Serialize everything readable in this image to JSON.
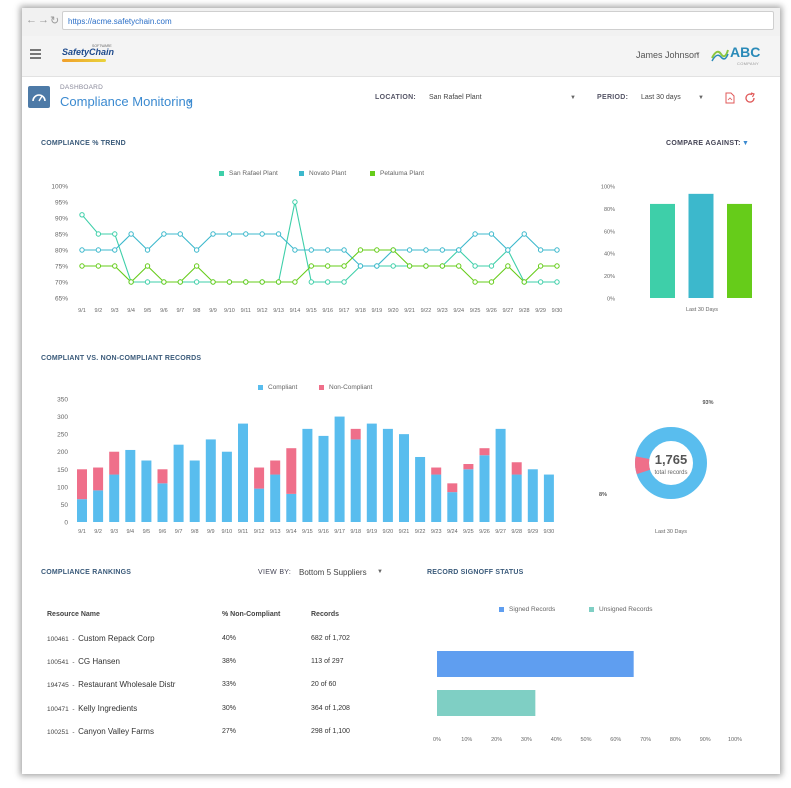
{
  "browser": {
    "url": "https://acme.safetychain.com",
    "back": "←",
    "forward": "→",
    "reload": "↻"
  },
  "header": {
    "logo_text": "SafetyChain",
    "logo_sub": "SOFTWARE",
    "user_name": "James Johnson",
    "company_logo": "ABC",
    "company_sub": "COMPANY"
  },
  "page": {
    "breadcrumb": "DASHBOARD",
    "title": "Compliance Monitoring",
    "location_label": "LOCATION:",
    "location_value": "San Rafael Plant",
    "period_label": "PERIOD:",
    "period_value": "Last 30 days"
  },
  "trend": {
    "title": "COMPLIANCE % TREND",
    "compare_label": "COMPARE AGAINST:",
    "legend": [
      {
        "name": "San Rafael Plant",
        "color": "#3ecfa9"
      },
      {
        "name": "Novato Plant",
        "color": "#3cb8cc"
      },
      {
        "name": "Petaluma Plant",
        "color": "#66cc1a"
      }
    ],
    "bar_caption": "Last 30 Days"
  },
  "records": {
    "title": "COMPLIANT VS. NON-COMPLIANT RECORDS",
    "legend": [
      {
        "name": "Compliant",
        "color": "#59bdee"
      },
      {
        "name": "Non-Compliant",
        "color": "#ef6f8a"
      }
    ],
    "donut": {
      "total": "1,765",
      "total_label": "total records",
      "pct_compliant": "93%",
      "pct_noncompliant": "8%",
      "caption": "Last 30 Days"
    }
  },
  "chart_data": [
    {
      "type": "line",
      "x": [
        "9/1",
        "9/2",
        "9/3",
        "9/4",
        "9/5",
        "9/6",
        "9/7",
        "9/8",
        "9/9",
        "9/10",
        "9/11",
        "9/12",
        "9/13",
        "9/14",
        "9/15",
        "9/16",
        "9/17",
        "9/18",
        "9/19",
        "9/20",
        "9/21",
        "9/22",
        "9/23",
        "9/24",
        "9/25",
        "9/26",
        "9/27",
        "9/28",
        "9/29",
        "9/30"
      ],
      "yticks": [
        "100%",
        "95%",
        "90%",
        "85%",
        "80%",
        "75%",
        "70%",
        "65%"
      ],
      "ylim": [
        65,
        100
      ],
      "series": [
        {
          "name": "San Rafael Plant",
          "color": "#3ecfa9",
          "values": [
            91,
            85,
            85,
            70,
            70,
            70,
            70,
            70,
            70,
            70,
            70,
            70,
            70,
            95,
            70,
            70,
            70,
            75,
            75,
            75,
            75,
            75,
            75,
            80,
            75,
            75,
            80,
            70,
            70,
            70
          ]
        },
        {
          "name": "Novato Plant",
          "color": "#3cb8cc",
          "values": [
            80,
            80,
            80,
            85,
            80,
            85,
            85,
            80,
            85,
            85,
            85,
            85,
            85,
            80,
            80,
            80,
            80,
            75,
            75,
            80,
            80,
            80,
            80,
            80,
            85,
            85,
            80,
            85,
            80,
            80
          ]
        },
        {
          "name": "Petaluma Plant",
          "color": "#66cc1a",
          "values": [
            75,
            75,
            75,
            70,
            75,
            70,
            70,
            75,
            70,
            70,
            70,
            70,
            70,
            70,
            75,
            75,
            75,
            80,
            80,
            80,
            75,
            75,
            75,
            75,
            70,
            70,
            75,
            70,
            75,
            75
          ]
        }
      ]
    },
    {
      "type": "bar",
      "categories": [
        "San Rafael Plant",
        "Novato Plant",
        "Petaluma Plant"
      ],
      "values": [
        84,
        93,
        84
      ],
      "colors": [
        "#3ecfa9",
        "#3cb8cc",
        "#66cc1a"
      ],
      "yticks": [
        "100%",
        "80%",
        "60%",
        "40%",
        "20%",
        "0%"
      ],
      "ylim": [
        0,
        100
      ],
      "xlabel": "Last 30 Days"
    },
    {
      "type": "bar",
      "stacked": true,
      "categories": [
        "9/1",
        "9/2",
        "9/3",
        "9/4",
        "9/5",
        "9/6",
        "9/7",
        "9/8",
        "9/9",
        "9/10",
        "9/11",
        "9/12",
        "9/13",
        "9/14",
        "9/15",
        "9/16",
        "9/17",
        "9/18",
        "9/19",
        "9/20",
        "9/21",
        "9/22",
        "9/23",
        "9/24",
        "9/25",
        "9/26",
        "9/27",
        "9/28",
        "9/29",
        "9/30"
      ],
      "ylim": [
        0,
        350
      ],
      "yticks": [
        "350",
        "300",
        "250",
        "200",
        "150",
        "100",
        "50",
        "0"
      ],
      "series": [
        {
          "name": "Compliant",
          "color": "#59bdee",
          "values": [
            65,
            90,
            135,
            205,
            175,
            110,
            220,
            175,
            235,
            200,
            280,
            95,
            135,
            80,
            265,
            245,
            300,
            235,
            280,
            265,
            250,
            185,
            135,
            85,
            150,
            190,
            265,
            135,
            150,
            135
          ]
        },
        {
          "name": "Non-Compliant",
          "color": "#ef6f8a",
          "values": [
            85,
            65,
            65,
            0,
            0,
            40,
            0,
            0,
            0,
            0,
            0,
            60,
            40,
            130,
            0,
            0,
            0,
            30,
            0,
            0,
            0,
            0,
            20,
            25,
            15,
            20,
            0,
            35,
            0,
            0
          ]
        }
      ]
    },
    {
      "type": "pie",
      "categories": [
        "Compliant",
        "Non-Compliant"
      ],
      "values": [
        93,
        8
      ],
      "colors": [
        "#59bdee",
        "#ef6f8a"
      ],
      "total": "1,765"
    },
    {
      "type": "bar",
      "orientation": "horizontal",
      "categories": [
        "Signed Records",
        "Unsigned Records"
      ],
      "values": [
        66,
        33
      ],
      "colors": [
        "#5f9ef0",
        "#7fcfc4"
      ],
      "xticks": [
        "0%",
        "10%",
        "20%",
        "30%",
        "40%",
        "50%",
        "60%",
        "70%",
        "80%",
        "90%",
        "100%"
      ],
      "xlim": [
        0,
        100
      ]
    }
  ],
  "rankings": {
    "title": "COMPLIANCE RANKINGS",
    "viewby_label": "VIEW BY:",
    "viewby_value": "Bottom 5 Suppliers",
    "columns": [
      "Resource Name",
      "% Non-Compliant",
      "Records"
    ],
    "rows": [
      {
        "id": "100461",
        "name": "Custom Repack Corp",
        "pct": "40%",
        "records": "682 of 1,702"
      },
      {
        "id": "100541",
        "name": "CG Hansen",
        "pct": "38%",
        "records": "113 of 297"
      },
      {
        "id": "194745",
        "name": "Restaurant Wholesale Distr",
        "pct": "33%",
        "records": "20 of 60"
      },
      {
        "id": "100471",
        "name": "Kelly Ingredients",
        "pct": "30%",
        "records": "364 of 1,208"
      },
      {
        "id": "100251",
        "name": "Canyon Valley Farms",
        "pct": "27%",
        "records": "298 of 1,100"
      }
    ]
  },
  "signoff": {
    "title": "RECORD SIGNOFF STATUS",
    "legend": [
      {
        "name": "Signed Records",
        "color": "#5f9ef0"
      },
      {
        "name": "Unsigned Records",
        "color": "#7fcfc4"
      }
    ]
  }
}
